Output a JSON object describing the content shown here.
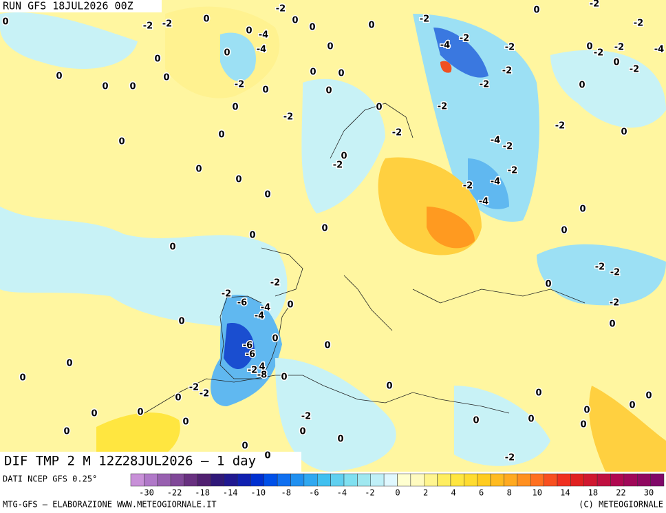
{
  "header": {
    "run": "RUN GFS 18JUL2026 00Z"
  },
  "map": {
    "title": "DIF TMP 2 M 12Z28JUL2026 – 1 day",
    "contour_labels": [
      "0",
      "-2",
      "-2",
      "-2",
      "0",
      "0",
      "-4",
      "0",
      "0",
      "-4",
      "0",
      "0",
      "-2",
      "-2",
      "-2",
      "-4",
      "-2",
      "-2",
      "0",
      "0",
      "-2",
      "-2",
      "-4",
      "0",
      "-2",
      "-2",
      "0",
      "0",
      "0",
      "0",
      "0",
      "-2",
      "0",
      "0",
      "0",
      "0",
      "0",
      "-2",
      "0",
      "0",
      "-2",
      "0",
      "-2",
      "-2",
      "-2",
      "0",
      "0",
      "0",
      "0",
      "-2",
      "-4",
      "-2",
      "-2",
      "-2",
      "-4",
      "-4",
      "0",
      "0",
      "0",
      "0",
      "0",
      "0",
      "0",
      "0",
      "-2",
      "-2",
      "0",
      "-2",
      "-2",
      "-6",
      "-4",
      "0",
      "-4",
      "-2",
      "0",
      "0",
      "0",
      "-6",
      "-6",
      "0",
      "0",
      "-2",
      "4",
      "-8",
      "0",
      "0",
      "0",
      "-2",
      "-2",
      "0",
      "0",
      "0",
      "0",
      "0",
      "0",
      "0",
      "-2",
      "0",
      "0",
      "0",
      "0",
      "0",
      "0",
      "0",
      "0",
      "0",
      "-2"
    ]
  },
  "legend": {
    "source": "DATI NCEP GFS 0.25°",
    "colors": [
      "#c890d8",
      "#b078c8",
      "#9860b0",
      "#804898",
      "#683080",
      "#502070",
      "#301878",
      "#201890",
      "#1020b0",
      "#0030d0",
      "#0050e8",
      "#1070f0",
      "#2090f0",
      "#30a8f0",
      "#40c0f0",
      "#60d0f0",
      "#80e0f0",
      "#a0e8f0",
      "#c0f0f8",
      "#e0f8ff",
      "#ffffd0",
      "#fffbc0",
      "#fff590",
      "#ffee60",
      "#ffe640",
      "#ffdc30",
      "#ffcc20",
      "#ffbb20",
      "#ffaa20",
      "#ff9020",
      "#ff7020",
      "#f85020",
      "#f03020",
      "#e02020",
      "#d01830",
      "#c01040",
      "#b00850",
      "#a00858",
      "#900860",
      "#800868"
    ],
    "labels": [
      "-30",
      "-22",
      "-18",
      "-14",
      "-10",
      "-8",
      "-6",
      "-4",
      "-2",
      "0",
      "2",
      "4",
      "6",
      "8",
      "10",
      "14",
      "18",
      "22",
      "30"
    ]
  },
  "footer": {
    "credit": "MTG-GFS – ELABORAZIONE WWW.METEOGIORNALE.IT",
    "copyright": "(C) METEOGIORNALE"
  }
}
